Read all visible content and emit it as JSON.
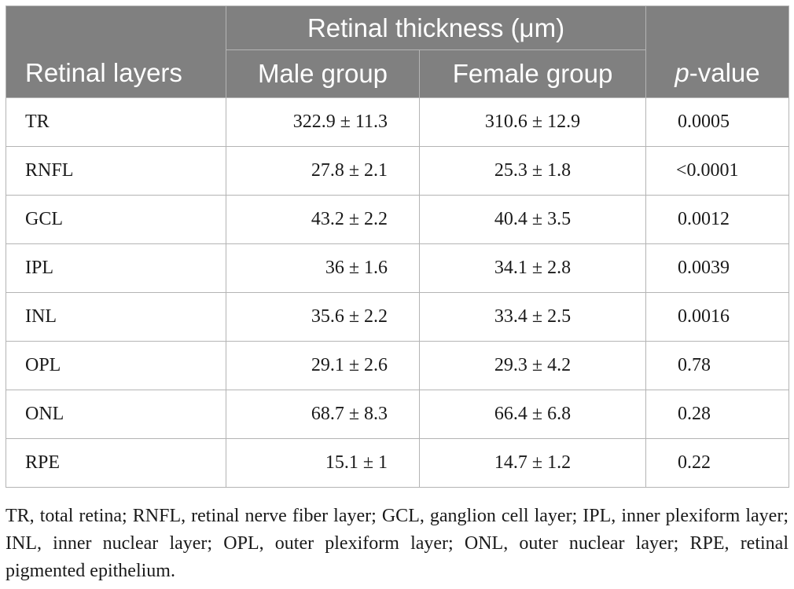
{
  "table": {
    "group_header": "Retinal thickness (μm)",
    "headers": {
      "layers": "Retinal layers",
      "male": "Male group",
      "female": "Female group",
      "p_italic": "p",
      "p_rest": "-value"
    },
    "rows": [
      {
        "layer": "TR",
        "male": "322.9 ± 11.3",
        "female": "310.6 ± 12.9",
        "p": "0.0005"
      },
      {
        "layer": "RNFL",
        "male": "27.8 ± 2.1",
        "female": "25.3 ± 1.8",
        "p": "<0.0001"
      },
      {
        "layer": "GCL",
        "male": "43.2 ± 2.2",
        "female": "40.4 ± 3.5",
        "p": "0.0012"
      },
      {
        "layer": "IPL",
        "male": "36 ± 1.6",
        "female": "34.1 ± 2.8",
        "p": "0.0039"
      },
      {
        "layer": "INL",
        "male": "35.6 ± 2.2",
        "female": "33.4 ± 2.5",
        "p": "0.0016"
      },
      {
        "layer": "OPL",
        "male": "29.1 ± 2.6",
        "female": "29.3 ± 4.2",
        "p": "0.78"
      },
      {
        "layer": "ONL",
        "male": "68.7 ± 8.3",
        "female": "66.4 ± 6.8",
        "p": "0.28"
      },
      {
        "layer": "RPE",
        "male": "15.1 ± 1",
        "female": "14.7 ± 1.2",
        "p": "0.22"
      }
    ]
  },
  "footnote": "TR, total retina; RNFL, retinal nerve fiber layer; GCL, ganglion cell layer; IPL, inner plexiform layer; INL, inner nuclear layer; OPL, outer plexiform layer; ONL, outer nuclear layer; RPE, retinal pigmented epithelium.",
  "colors": {
    "header_bg": "#808080",
    "border": "#b4b4b4"
  }
}
